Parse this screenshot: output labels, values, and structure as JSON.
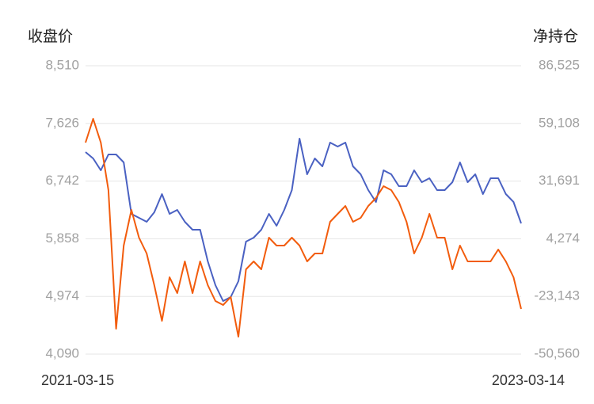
{
  "chart_data": {
    "type": "line",
    "y_label": "收盘价",
    "y2_label": "净持仓",
    "categories": [
      "2021-03-15",
      null,
      null,
      null,
      null,
      null,
      null,
      null,
      null,
      null,
      null,
      null,
      null,
      null,
      null,
      null,
      null,
      null,
      null,
      null,
      null,
      null,
      null,
      null,
      null,
      null,
      null,
      null,
      null,
      null,
      null,
      null,
      null,
      null,
      null,
      null,
      null,
      null,
      null,
      null,
      null,
      null,
      null,
      null,
      null,
      null,
      null,
      null,
      null,
      null,
      null,
      null,
      null,
      null,
      null,
      null,
      null,
      "2023-03-14"
    ],
    "ylim": [
      4090,
      8510
    ],
    "yticks": [
      {
        "value": 4090,
        "label": "4,090"
      },
      {
        "value": 4974,
        "label": "4,974"
      },
      {
        "value": 5858,
        "label": "5,858"
      },
      {
        "value": 6742,
        "label": "6,742"
      },
      {
        "value": 7626,
        "label": "7,626"
      },
      {
        "value": 8510,
        "label": "8,510"
      }
    ],
    "y2lim": [
      -50560,
      86525
    ],
    "y2ticks": [
      {
        "value": -50560,
        "label": "-50,560"
      },
      {
        "value": -23143,
        "label": "-23,143"
      },
      {
        "value": 4274,
        "label": "4,274"
      },
      {
        "value": 31691,
        "label": "31,691"
      },
      {
        "value": 59108,
        "label": "59,108"
      },
      {
        "value": 86525,
        "label": "86,525"
      }
    ],
    "grid": true,
    "series": [
      {
        "color": "#4a61c2",
        "axis": "y",
        "values": [
          7186,
          7089,
          6907,
          7150,
          7150,
          7029,
          6239,
          6179,
          6118,
          6264,
          6543,
          6239,
          6300,
          6118,
          5996,
          5996,
          5511,
          5146,
          4904,
          4964,
          5207,
          5814,
          5875,
          5996,
          6239,
          6057,
          6300,
          6604,
          7393,
          6846,
          7089,
          6968,
          7332,
          7271,
          7332,
          6968,
          6846,
          6604,
          6421,
          6907,
          6846,
          6664,
          6664,
          6907,
          6725,
          6786,
          6604,
          6604,
          6725,
          7029,
          6725,
          6846,
          6543,
          6786,
          6786,
          6543,
          6421,
          6094
        ]
      },
      {
        "color": "#f25c0d",
        "axis": "y2",
        "values": [
          49995,
          61293,
          49995,
          27399,
          -38506,
          1037,
          17984,
          4803,
          -2729,
          -17793,
          -34740,
          -14027,
          -21559,
          -6495,
          -21559,
          -6495,
          -17793,
          -25325,
          -27208,
          -23442,
          -42272,
          -10261,
          -6495,
          -10261,
          4803,
          1037,
          1037,
          4803,
          1037,
          -6495,
          -2729,
          -2729,
          12335,
          16101,
          19867,
          12335,
          14218,
          19867,
          23633,
          29282,
          27399,
          21750,
          12335,
          -2729,
          4803,
          16101,
          4803,
          4803,
          -10261,
          1037,
          -6495,
          -6495,
          -6495,
          -6495,
          -846,
          -6495,
          -14027,
          -29091
        ]
      }
    ]
  }
}
